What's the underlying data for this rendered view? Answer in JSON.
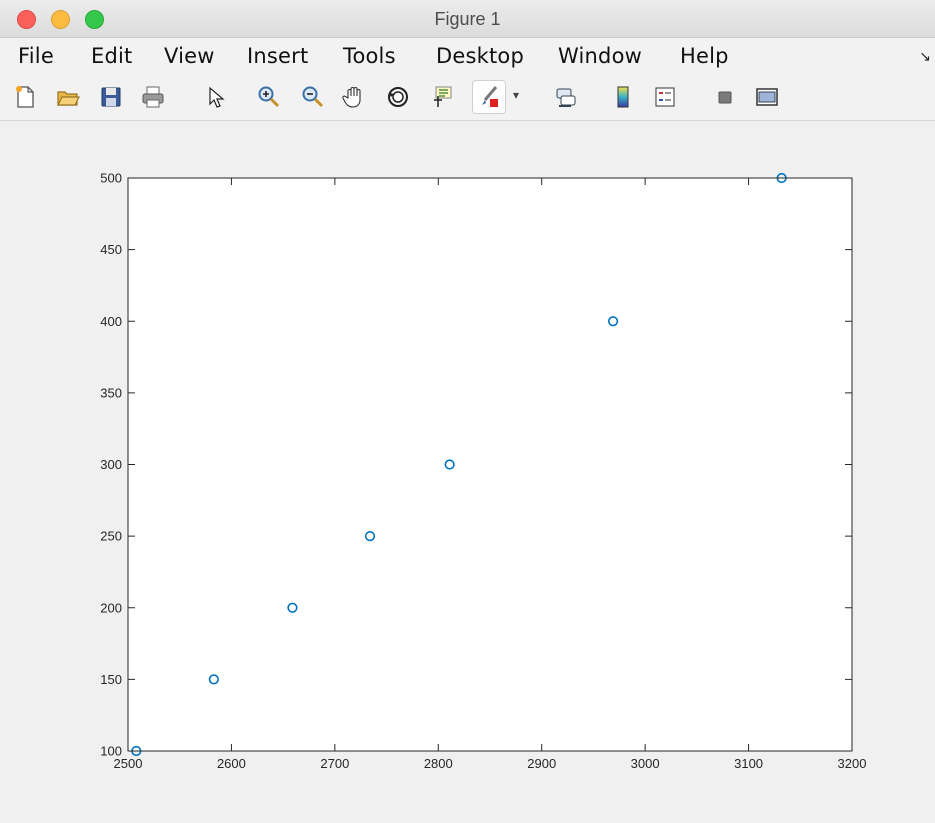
{
  "window": {
    "title": "Figure 1"
  },
  "menu": {
    "items": [
      "File",
      "Edit",
      "View",
      "Insert",
      "Tools",
      "Desktop",
      "Window",
      "Help"
    ],
    "overflow_icon": "dock-arrow-icon"
  },
  "toolbar": {
    "icons": [
      "new-figure-icon",
      "open-file-icon",
      "save-icon",
      "print-icon",
      "edit-plot-cursor-icon",
      "zoom-in-icon",
      "zoom-out-icon",
      "pan-hand-icon",
      "rotate-3d-icon",
      "data-cursor-icon",
      "brush-icon",
      "brush-dropdown-icon",
      "link-plot-icon",
      "colorbar-icon",
      "legend-icon",
      "hide-plot-tools-icon",
      "show-plot-tools-icon"
    ]
  },
  "chart_data": {
    "type": "scatter",
    "marker": "circle",
    "marker_color": "#0072bd",
    "x": [
      2508,
      2583,
      2659,
      2734,
      2811,
      2969,
      3132
    ],
    "y": [
      100,
      150,
      200,
      250,
      300,
      400,
      500
    ],
    "xlim": [
      2500,
      3200
    ],
    "ylim": [
      100,
      500
    ],
    "xticks": [
      2500,
      2600,
      2700,
      2800,
      2900,
      3000,
      3100,
      3200
    ],
    "yticks": [
      100,
      150,
      200,
      250,
      300,
      350,
      400,
      450,
      500
    ],
    "title": "",
    "xlabel": "",
    "ylabel": "",
    "grid": false
  }
}
